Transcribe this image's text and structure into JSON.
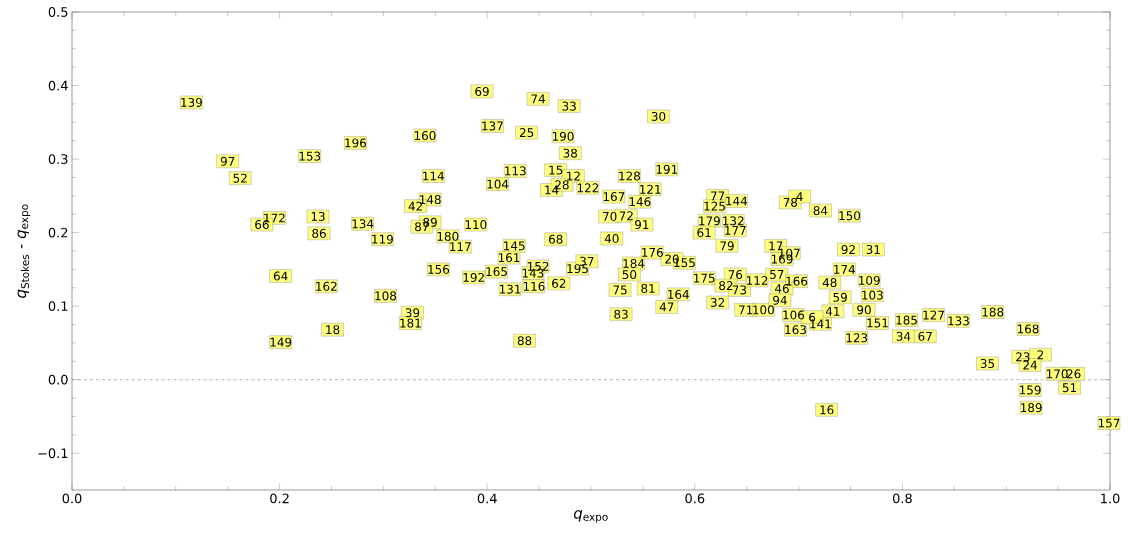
{
  "chart_data": {
    "type": "scatter",
    "xlabel": "*q*$_{expo}$",
    "ylabel": "*q*$_{Stokes}$ - *q*$_{expo}$",
    "xlim": [
      0,
      1
    ],
    "ylim": [
      -0.15,
      0.5
    ],
    "xticks": [
      {
        "value": 0,
        "label": "0.0"
      },
      {
        "value": 0.2,
        "label": "0.2"
      },
      {
        "value": 0.4,
        "label": "0.4"
      },
      {
        "value": 0.6,
        "label": "0.6"
      },
      {
        "value": 0.8,
        "label": "0.8"
      },
      {
        "value": 1,
        "label": "1.0"
      }
    ],
    "yticks": [
      {
        "value": -0.1,
        "label": "−0.1"
      },
      {
        "value": 0,
        "label": "0.0"
      },
      {
        "value": 0.1,
        "label": "0.1"
      },
      {
        "value": 0.2,
        "label": "0.2"
      },
      {
        "value": 0.3,
        "label": "0.3"
      },
      {
        "value": 0.4,
        "label": "0.4"
      },
      {
        "value": 0.5,
        "label": "0.5"
      }
    ],
    "marker": "square",
    "ref_lines": [
      {
        "axis": "y",
        "value": 0,
        "color": "#808080",
        "line_style": "dashed"
      }
    ],
    "series": [
      {
        "color": "#ffff66",
        "x": [
          0.115,
          0.15,
          0.162,
          0.229,
          0.273,
          0.195,
          0.183,
          0.237,
          0.238,
          0.28,
          0.299,
          0.201,
          0.245,
          0.302,
          0.328,
          0.326,
          0.251,
          0.201,
          0.34,
          0.395,
          0.449,
          0.479,
          0.565,
          0.405,
          0.438,
          0.473,
          0.48,
          0.348,
          0.427,
          0.41,
          0.466,
          0.483,
          0.462,
          0.472,
          0.497,
          0.537,
          0.573,
          0.557,
          0.522,
          0.547,
          0.345,
          0.331,
          0.518,
          0.534,
          0.549,
          0.345,
          0.337,
          0.389,
          0.362,
          0.374,
          0.426,
          0.421,
          0.466,
          0.52,
          0.353,
          0.387,
          0.409,
          0.449,
          0.444,
          0.422,
          0.445,
          0.469,
          0.487,
          0.496,
          0.436,
          0.541,
          0.537,
          0.528,
          0.529,
          0.555,
          0.559,
          0.59,
          0.584,
          0.573,
          0.622,
          0.619,
          0.64,
          0.614,
          0.609,
          0.637,
          0.639,
          0.631,
          0.692,
          0.701,
          0.721,
          0.749,
          0.678,
          0.691,
          0.684,
          0.748,
          0.772,
          0.744,
          0.768,
          0.609,
          0.639,
          0.63,
          0.643,
          0.66,
          0.622,
          0.679,
          0.698,
          0.684,
          0.73,
          0.74,
          0.771,
          0.763,
          0.649,
          0.666,
          0.682,
          0.695,
          0.697,
          0.733,
          0.721,
          0.713,
          0.756,
          0.776,
          0.804,
          0.83,
          0.854,
          0.887,
          0.801,
          0.822,
          0.921,
          0.882,
          0.916,
          0.933,
          0.923,
          0.949,
          0.965,
          0.961,
          0.923,
          0.924,
          0.999,
          0.727,
          0.578
        ],
        "values": [
          0.377,
          0.297,
          0.274,
          0.304,
          0.322,
          0.22,
          0.211,
          0.222,
          0.199,
          0.212,
          0.191,
          0.141,
          0.127,
          0.114,
          0.091,
          0.077,
          0.068,
          0.051,
          0.332,
          0.392,
          0.382,
          0.372,
          0.358,
          0.345,
          0.336,
          0.331,
          0.308,
          0.277,
          0.284,
          0.266,
          0.285,
          0.277,
          0.258,
          0.265,
          0.261,
          0.277,
          0.286,
          0.259,
          0.249,
          0.242,
          0.245,
          0.236,
          0.222,
          0.223,
          0.211,
          0.214,
          0.208,
          0.211,
          0.195,
          0.181,
          0.182,
          0.166,
          0.191,
          0.192,
          0.15,
          0.139,
          0.147,
          0.154,
          0.145,
          0.123,
          0.127,
          0.131,
          0.151,
          0.161,
          0.053,
          0.158,
          0.143,
          0.122,
          0.089,
          0.124,
          0.173,
          0.159,
          0.116,
          0.099,
          0.25,
          0.236,
          0.243,
          0.216,
          0.2,
          0.216,
          0.203,
          0.182,
          0.241,
          0.249,
          0.23,
          0.223,
          0.182,
          0.172,
          0.164,
          0.177,
          0.177,
          0.15,
          0.135,
          0.138,
          0.143,
          0.128,
          0.122,
          0.135,
          0.105,
          0.143,
          0.134,
          0.124,
          0.132,
          0.112,
          0.115,
          0.095,
          0.095,
          0.095,
          0.108,
          0.088,
          0.068,
          0.093,
          0.076,
          0.085,
          0.057,
          0.077,
          0.081,
          0.088,
          0.08,
          0.092,
          0.059,
          0.059,
          0.069,
          0.022,
          0.031,
          0.034,
          0.02,
          0.008,
          0.008,
          -0.011,
          -0.014,
          -0.038,
          -0.059,
          -0.041,
          0.164
        ]
      }
    ],
    "annotations": [
      {
        "text": "139",
        "x": 0.115,
        "y": 0.377
      },
      {
        "text": "97",
        "x": 0.15,
        "y": 0.297
      },
      {
        "text": "52",
        "x": 0.162,
        "y": 0.274
      },
      {
        "text": "153",
        "x": 0.229,
        "y": 0.304
      },
      {
        "text": "196",
        "x": 0.273,
        "y": 0.322
      },
      {
        "text": "172",
        "x": 0.195,
        "y": 0.22
      },
      {
        "text": "66",
        "x": 0.183,
        "y": 0.211
      },
      {
        "text": "13",
        "x": 0.237,
        "y": 0.222
      },
      {
        "text": "86",
        "x": 0.238,
        "y": 0.199
      },
      {
        "text": "134",
        "x": 0.28,
        "y": 0.212
      },
      {
        "text": "119",
        "x": 0.299,
        "y": 0.191
      },
      {
        "text": "64",
        "x": 0.201,
        "y": 0.141
      },
      {
        "text": "162",
        "x": 0.245,
        "y": 0.127
      },
      {
        "text": "108",
        "x": 0.302,
        "y": 0.114
      },
      {
        "text": "39",
        "x": 0.328,
        "y": 0.091
      },
      {
        "text": "181",
        "x": 0.326,
        "y": 0.077
      },
      {
        "text": "18",
        "x": 0.251,
        "y": 0.068
      },
      {
        "text": "149",
        "x": 0.201,
        "y": 0.051
      },
      {
        "text": "160",
        "x": 0.34,
        "y": 0.332
      },
      {
        "text": "69",
        "x": 0.395,
        "y": 0.392
      },
      {
        "text": "74",
        "x": 0.449,
        "y": 0.382
      },
      {
        "text": "33",
        "x": 0.479,
        "y": 0.372
      },
      {
        "text": "30",
        "x": 0.565,
        "y": 0.358
      },
      {
        "text": "137",
        "x": 0.405,
        "y": 0.345
      },
      {
        "text": "25",
        "x": 0.438,
        "y": 0.336
      },
      {
        "text": "190",
        "x": 0.473,
        "y": 0.331
      },
      {
        "text": "38",
        "x": 0.48,
        "y": 0.308
      },
      {
        "text": "114",
        "x": 0.348,
        "y": 0.277
      },
      {
        "text": "113",
        "x": 0.427,
        "y": 0.284
      },
      {
        "text": "104",
        "x": 0.41,
        "y": 0.266
      },
      {
        "text": "15",
        "x": 0.466,
        "y": 0.285
      },
      {
        "text": "12",
        "x": 0.483,
        "y": 0.277
      },
      {
        "text": "14",
        "x": 0.462,
        "y": 0.258
      },
      {
        "text": "28",
        "x": 0.472,
        "y": 0.265
      },
      {
        "text": "122",
        "x": 0.497,
        "y": 0.261
      },
      {
        "text": "128",
        "x": 0.537,
        "y": 0.277
      },
      {
        "text": "191",
        "x": 0.573,
        "y": 0.286
      },
      {
        "text": "121",
        "x": 0.557,
        "y": 0.259
      },
      {
        "text": "167",
        "x": 0.522,
        "y": 0.249
      },
      {
        "text": "146",
        "x": 0.547,
        "y": 0.242
      },
      {
        "text": "148",
        "x": 0.345,
        "y": 0.245
      },
      {
        "text": "42",
        "x": 0.331,
        "y": 0.236
      },
      {
        "text": "70",
        "x": 0.518,
        "y": 0.222
      },
      {
        "text": "72",
        "x": 0.534,
        "y": 0.223
      },
      {
        "text": "91",
        "x": 0.549,
        "y": 0.211
      },
      {
        "text": "89",
        "x": 0.345,
        "y": 0.214
      },
      {
        "text": "87",
        "x": 0.337,
        "y": 0.208
      },
      {
        "text": "110",
        "x": 0.389,
        "y": 0.211
      },
      {
        "text": "180",
        "x": 0.362,
        "y": 0.195
      },
      {
        "text": "117",
        "x": 0.374,
        "y": 0.181
      },
      {
        "text": "145",
        "x": 0.426,
        "y": 0.182
      },
      {
        "text": "161",
        "x": 0.421,
        "y": 0.166
      },
      {
        "text": "68",
        "x": 0.466,
        "y": 0.191
      },
      {
        "text": "40",
        "x": 0.52,
        "y": 0.192
      },
      {
        "text": "156",
        "x": 0.353,
        "y": 0.15
      },
      {
        "text": "192",
        "x": 0.387,
        "y": 0.139
      },
      {
        "text": "165",
        "x": 0.409,
        "y": 0.147
      },
      {
        "text": "152",
        "x": 0.449,
        "y": 0.154
      },
      {
        "text": "143",
        "x": 0.444,
        "y": 0.145
      },
      {
        "text": "131",
        "x": 0.422,
        "y": 0.123
      },
      {
        "text": "116",
        "x": 0.445,
        "y": 0.127
      },
      {
        "text": "62",
        "x": 0.469,
        "y": 0.131
      },
      {
        "text": "195",
        "x": 0.487,
        "y": 0.151
      },
      {
        "text": "37",
        "x": 0.496,
        "y": 0.161
      },
      {
        "text": "88",
        "x": 0.436,
        "y": 0.053
      },
      {
        "text": "184",
        "x": 0.541,
        "y": 0.158
      },
      {
        "text": "50",
        "x": 0.537,
        "y": 0.143
      },
      {
        "text": "75",
        "x": 0.528,
        "y": 0.122
      },
      {
        "text": "83",
        "x": 0.529,
        "y": 0.089
      },
      {
        "text": "81",
        "x": 0.555,
        "y": 0.124
      },
      {
        "text": "176",
        "x": 0.559,
        "y": 0.173
      },
      {
        "text": "155",
        "x": 0.59,
        "y": 0.159
      },
      {
        "text": "164",
        "x": 0.584,
        "y": 0.116
      },
      {
        "text": "47",
        "x": 0.573,
        "y": 0.099
      },
      {
        "text": "77",
        "x": 0.622,
        "y": 0.25
      },
      {
        "text": "125",
        "x": 0.619,
        "y": 0.236
      },
      {
        "text": "144",
        "x": 0.64,
        "y": 0.243
      },
      {
        "text": "179",
        "x": 0.614,
        "y": 0.216
      },
      {
        "text": "61",
        "x": 0.609,
        "y": 0.2
      },
      {
        "text": "132",
        "x": 0.637,
        "y": 0.216
      },
      {
        "text": "177",
        "x": 0.639,
        "y": 0.203
      },
      {
        "text": "79",
        "x": 0.631,
        "y": 0.182
      },
      {
        "text": "78",
        "x": 0.692,
        "y": 0.241
      },
      {
        "text": "4",
        "x": 0.701,
        "y": 0.249
      },
      {
        "text": "84",
        "x": 0.721,
        "y": 0.23
      },
      {
        "text": "150",
        "x": 0.749,
        "y": 0.223
      },
      {
        "text": "17",
        "x": 0.678,
        "y": 0.182
      },
      {
        "text": "107",
        "x": 0.691,
        "y": 0.172
      },
      {
        "text": "169",
        "x": 0.684,
        "y": 0.164
      },
      {
        "text": "92",
        "x": 0.748,
        "y": 0.177
      },
      {
        "text": "31",
        "x": 0.772,
        "y": 0.177
      },
      {
        "text": "174",
        "x": 0.744,
        "y": 0.15
      },
      {
        "text": "109",
        "x": 0.768,
        "y": 0.135
      },
      {
        "text": "175",
        "x": 0.609,
        "y": 0.138
      },
      {
        "text": "76",
        "x": 0.639,
        "y": 0.143
      },
      {
        "text": "82",
        "x": 0.63,
        "y": 0.128
      },
      {
        "text": "73",
        "x": 0.643,
        "y": 0.122
      },
      {
        "text": "112",
        "x": 0.66,
        "y": 0.135
      },
      {
        "text": "32",
        "x": 0.622,
        "y": 0.105
      },
      {
        "text": "57",
        "x": 0.679,
        "y": 0.143
      },
      {
        "text": "166",
        "x": 0.698,
        "y": 0.134
      },
      {
        "text": "46",
        "x": 0.684,
        "y": 0.124
      },
      {
        "text": "48",
        "x": 0.73,
        "y": 0.132
      },
      {
        "text": "59",
        "x": 0.74,
        "y": 0.112
      },
      {
        "text": "103",
        "x": 0.771,
        "y": 0.115
      },
      {
        "text": "90",
        "x": 0.763,
        "y": 0.095
      },
      {
        "text": "71",
        "x": 0.649,
        "y": 0.095
      },
      {
        "text": "100",
        "x": 0.666,
        "y": 0.095
      },
      {
        "text": "94",
        "x": 0.682,
        "y": 0.108
      },
      {
        "text": "106",
        "x": 0.695,
        "y": 0.088
      },
      {
        "text": "163",
        "x": 0.697,
        "y": 0.068
      },
      {
        "text": "41",
        "x": 0.733,
        "y": 0.093
      },
      {
        "text": "141",
        "x": 0.721,
        "y": 0.076
      },
      {
        "text": "6",
        "x": 0.713,
        "y": 0.085
      },
      {
        "text": "123",
        "x": 0.756,
        "y": 0.057
      },
      {
        "text": "151",
        "x": 0.776,
        "y": 0.077
      },
      {
        "text": "185",
        "x": 0.804,
        "y": 0.081
      },
      {
        "text": "127",
        "x": 0.83,
        "y": 0.088
      },
      {
        "text": "133",
        "x": 0.854,
        "y": 0.08
      },
      {
        "text": "188",
        "x": 0.887,
        "y": 0.092
      },
      {
        "text": "34",
        "x": 0.801,
        "y": 0.059
      },
      {
        "text": "67",
        "x": 0.822,
        "y": 0.059
      },
      {
        "text": "168",
        "x": 0.921,
        "y": 0.069
      },
      {
        "text": "35",
        "x": 0.882,
        "y": 0.022
      },
      {
        "text": "23",
        "x": 0.916,
        "y": 0.031
      },
      {
        "text": "2",
        "x": 0.933,
        "y": 0.034
      },
      {
        "text": "24",
        "x": 0.923,
        "y": 0.02
      },
      {
        "text": "170",
        "x": 0.949,
        "y": 0.008
      },
      {
        "text": "26",
        "x": 0.965,
        "y": 0.008
      },
      {
        "text": "51",
        "x": 0.961,
        "y": -0.011
      },
      {
        "text": "159",
        "x": 0.923,
        "y": -0.014
      },
      {
        "text": "189",
        "x": 0.924,
        "y": -0.038
      },
      {
        "text": "157",
        "x": 0.999,
        "y": -0.059
      },
      {
        "text": "16",
        "x": 0.727,
        "y": -0.041
      },
      {
        "text": "20",
        "x": 0.578,
        "y": 0.164
      }
    ]
  }
}
